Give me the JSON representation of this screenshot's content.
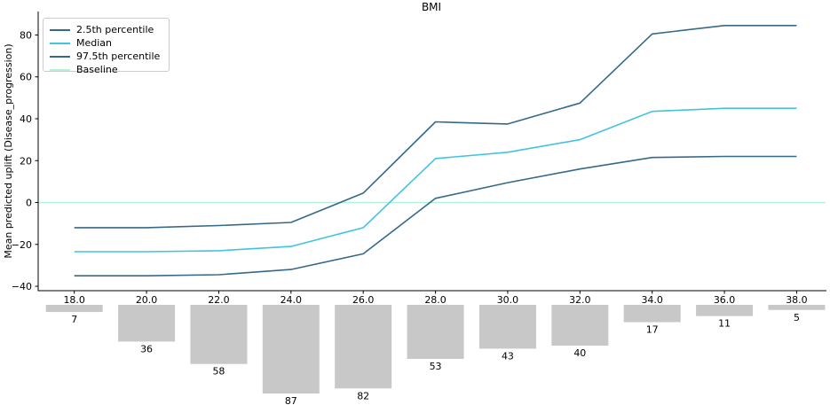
{
  "chart_data": {
    "type": "line",
    "title": "BMI",
    "ylabel": "Mean predicted uplift (Disease_progression)",
    "xlabel": "",
    "x": [
      18,
      20,
      22,
      24,
      26,
      28,
      30,
      32,
      34,
      36,
      38
    ],
    "series": [
      {
        "name": "2.5th percentile",
        "color": "#35698a",
        "values": [
          -35,
          -35,
          -34.5,
          -32,
          -24.5,
          2,
          9.5,
          16,
          21.5,
          22,
          22
        ]
      },
      {
        "name": "Median",
        "color": "#42c3de",
        "values": [
          -23.5,
          -23.5,
          -23,
          -21,
          -12,
          21,
          24,
          30,
          43.5,
          45,
          45
        ]
      },
      {
        "name": "97.5th percentile",
        "color": "#35698a",
        "values": [
          -12,
          -12,
          -11,
          -9.5,
          4.5,
          38.5,
          37.5,
          47.5,
          80.5,
          84.5,
          84.5
        ]
      }
    ],
    "baseline": {
      "name": "Baseline",
      "color": "#b4f1da",
      "value": 0
    },
    "legend_entries": [
      {
        "label": "2.5th percentile",
        "color": "#35698a"
      },
      {
        "label": "Median",
        "color": "#42c3de"
      },
      {
        "label": "97.5th percentile",
        "color": "#35698a"
      },
      {
        "label": "Baseline",
        "color": "#b4f1da"
      }
    ],
    "legend_position": "upper-left",
    "grid": false,
    "xlim": [
      17.0,
      38.8
    ],
    "ylim": [
      -42.1,
      91.2
    ],
    "xticks": [
      18,
      20,
      22,
      24,
      26,
      28,
      30,
      32,
      34,
      36,
      38
    ],
    "xtick_labels": [
      "18.0",
      "20.0",
      "22.0",
      "24.0",
      "26.0",
      "28.0",
      "30.0",
      "32.0",
      "34.0",
      "36.0",
      "38.0"
    ],
    "yticks": [
      80,
      60,
      40,
      20,
      0,
      -20,
      -40
    ],
    "ytick_labels": [
      "80",
      "60",
      "40",
      "20",
      "0",
      "−20",
      "−40"
    ],
    "histogram": {
      "counts": [
        7,
        36,
        58,
        87,
        82,
        53,
        43,
        40,
        17,
        11,
        5
      ],
      "count_labels": [
        "7",
        "36",
        "58",
        "87",
        "82",
        "53",
        "43",
        "40",
        "17",
        "11",
        "5"
      ],
      "bar_color": "#c8c8c8"
    }
  }
}
